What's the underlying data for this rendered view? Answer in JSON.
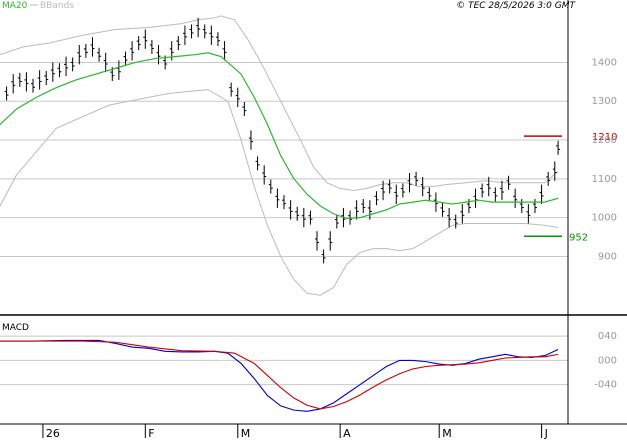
{
  "header": {
    "legend_ma20": "MA20",
    "legend_bbands": "BBands",
    "copyright": "© TEC 28/5/2026 3:0 GMT"
  },
  "colors": {
    "price": "#000000",
    "ma20": "#2db52d",
    "bbands": "#bbbbbb",
    "grid": "#c8c8c8",
    "macd": "#0000cc",
    "signal": "#cc0000",
    "resistance": "#cc0000",
    "support": "#009900",
    "axis_text": "#999999"
  },
  "chart_data": [
    {
      "type": "line",
      "title": "",
      "ylim": [
        780,
        1530
      ],
      "y_ticks": [
        900,
        1000,
        1100,
        1200,
        1300,
        1400
      ],
      "x_month_labels": [
        {
          "label": "26",
          "day": 8
        },
        {
          "label": "F",
          "day": 39
        },
        {
          "label": "M",
          "day": 67
        },
        {
          "label": "A",
          "day": 98
        },
        {
          "label": "M",
          "day": 128
        },
        {
          "label": "J",
          "day": 159
        }
      ],
      "x_range_days": [
        -5,
        167
      ],
      "levels": {
        "resistance": {
          "value": 1210,
          "label": "1210"
        },
        "support": {
          "value": 952,
          "label": "952"
        }
      },
      "series": [
        {
          "name": "Price",
          "points": [
            [
              -3,
              1320
            ],
            [
              -1,
              1345
            ],
            [
              1,
              1355
            ],
            [
              3,
              1350
            ],
            [
              5,
              1340
            ],
            [
              7,
              1355
            ],
            [
              9,
              1360
            ],
            [
              11,
              1375
            ],
            [
              13,
              1380
            ],
            [
              15,
              1390
            ],
            [
              17,
              1395
            ],
            [
              19,
              1420
            ],
            [
              21,
              1430
            ],
            [
              23,
              1440
            ],
            [
              25,
              1420
            ],
            [
              27,
              1400
            ],
            [
              29,
              1370
            ],
            [
              31,
              1380
            ],
            [
              33,
              1410
            ],
            [
              35,
              1430
            ],
            [
              37,
              1450
            ],
            [
              39,
              1460
            ],
            [
              41,
              1440
            ],
            [
              43,
              1420
            ],
            [
              45,
              1400
            ],
            [
              47,
              1430
            ],
            [
              49,
              1450
            ],
            [
              51,
              1470
            ],
            [
              53,
              1480
            ],
            [
              55,
              1490
            ],
            [
              57,
              1480
            ],
            [
              59,
              1470
            ],
            [
              61,
              1460
            ],
            [
              63,
              1430
            ],
            [
              65,
              1330
            ],
            [
              67,
              1310
            ],
            [
              69,
              1280
            ],
            [
              71,
              1200
            ],
            [
              73,
              1140
            ],
            [
              75,
              1110
            ],
            [
              77,
              1080
            ],
            [
              79,
              1050
            ],
            [
              81,
              1040
            ],
            [
              83,
              1020
            ],
            [
              85,
              1010
            ],
            [
              87,
              1000
            ],
            [
              89,
              1000
            ],
            [
              91,
              940
            ],
            [
              93,
              900
            ],
            [
              95,
              940
            ],
            [
              97,
              990
            ],
            [
              99,
              1000
            ],
            [
              101,
              1000
            ],
            [
              103,
              1020
            ],
            [
              105,
              1030
            ],
            [
              107,
              1020
            ],
            [
              109,
              1050
            ],
            [
              111,
              1070
            ],
            [
              113,
              1080
            ],
            [
              115,
              1060
            ],
            [
              117,
              1070
            ],
            [
              119,
              1090
            ],
            [
              121,
              1100
            ],
            [
              123,
              1080
            ],
            [
              125,
              1060
            ],
            [
              127,
              1040
            ],
            [
              129,
              1020
            ],
            [
              131,
              1000
            ],
            [
              133,
              990
            ],
            [
              135,
              1010
            ],
            [
              137,
              1030
            ],
            [
              139,
              1050
            ],
            [
              141,
              1070
            ],
            [
              143,
              1080
            ],
            [
              145,
              1060
            ],
            [
              147,
              1070
            ],
            [
              149,
              1090
            ],
            [
              151,
              1050
            ],
            [
              153,
              1030
            ],
            [
              155,
              1010
            ],
            [
              157,
              1030
            ],
            [
              159,
              1060
            ],
            [
              161,
              1100
            ],
            [
              163,
              1120
            ],
            [
              164,
              1180
            ]
          ]
        },
        {
          "name": "MA20",
          "points": [
            [
              -5,
              1240
            ],
            [
              0,
              1280
            ],
            [
              6,
              1310
            ],
            [
              12,
              1335
            ],
            [
              18,
              1355
            ],
            [
              24,
              1370
            ],
            [
              30,
              1385
            ],
            [
              36,
              1400
            ],
            [
              42,
              1410
            ],
            [
              48,
              1415
            ],
            [
              54,
              1420
            ],
            [
              58,
              1425
            ],
            [
              62,
              1415
            ],
            [
              64,
              1400
            ],
            [
              68,
              1370
            ],
            [
              72,
              1310
            ],
            [
              76,
              1240
            ],
            [
              80,
              1160
            ],
            [
              84,
              1100
            ],
            [
              88,
              1060
            ],
            [
              92,
              1030
            ],
            [
              96,
              1010
            ],
            [
              100,
              998
            ],
            [
              104,
              1000
            ],
            [
              108,
              1010
            ],
            [
              112,
              1020
            ],
            [
              116,
              1035
            ],
            [
              120,
              1040
            ],
            [
              124,
              1045
            ],
            [
              128,
              1040
            ],
            [
              132,
              1035
            ],
            [
              136,
              1040
            ],
            [
              140,
              1045
            ],
            [
              144,
              1040
            ],
            [
              148,
              1040
            ],
            [
              152,
              1040
            ],
            [
              156,
              1040
            ],
            [
              160,
              1040
            ],
            [
              164,
              1050
            ]
          ]
        },
        {
          "name": "BBands upper",
          "points": [
            [
              -5,
              1420
            ],
            [
              2,
              1440
            ],
            [
              10,
              1450
            ],
            [
              20,
              1470
            ],
            [
              30,
              1485
            ],
            [
              40,
              1490
            ],
            [
              50,
              1500
            ],
            [
              55,
              1510
            ],
            [
              60,
              1515
            ],
            [
              62,
              1520
            ],
            [
              66,
              1510
            ],
            [
              70,
              1460
            ],
            [
              74,
              1400
            ],
            [
              80,
              1300
            ],
            [
              86,
              1200
            ],
            [
              90,
              1130
            ],
            [
              94,
              1090
            ],
            [
              98,
              1075
            ],
            [
              102,
              1070
            ],
            [
              106,
              1075
            ],
            [
              110,
              1085
            ],
            [
              114,
              1090
            ],
            [
              118,
              1090
            ],
            [
              122,
              1080
            ],
            [
              126,
              1080
            ],
            [
              130,
              1085
            ],
            [
              136,
              1090
            ],
            [
              142,
              1095
            ],
            [
              148,
              1090
            ],
            [
              154,
              1090
            ],
            [
              160,
              1090
            ],
            [
              164,
              1120
            ]
          ]
        },
        {
          "name": "BBands lower",
          "points": [
            [
              -5,
              1030
            ],
            [
              0,
              1110
            ],
            [
              6,
              1170
            ],
            [
              12,
              1230
            ],
            [
              20,
              1260
            ],
            [
              28,
              1290
            ],
            [
              34,
              1300
            ],
            [
              40,
              1310
            ],
            [
              46,
              1320
            ],
            [
              52,
              1325
            ],
            [
              58,
              1330
            ],
            [
              64,
              1300
            ],
            [
              68,
              1200
            ],
            [
              72,
              1080
            ],
            [
              76,
              980
            ],
            [
              80,
              900
            ],
            [
              84,
              840
            ],
            [
              88,
              805
            ],
            [
              92,
              800
            ],
            [
              96,
              820
            ],
            [
              100,
              880
            ],
            [
              104,
              910
            ],
            [
              108,
              920
            ],
            [
              112,
              920
            ],
            [
              116,
              915
            ],
            [
              120,
              920
            ],
            [
              124,
              940
            ],
            [
              128,
              960
            ],
            [
              132,
              980
            ],
            [
              136,
              985
            ],
            [
              142,
              985
            ],
            [
              148,
              985
            ],
            [
              154,
              985
            ],
            [
              160,
              980
            ],
            [
              164,
              975
            ]
          ]
        }
      ]
    },
    {
      "type": "line",
      "title": "MACD",
      "ylim": [
        -95,
        70
      ],
      "y_ticks": [
        40,
        0,
        -40
      ],
      "y_tick_labels": [
        "040",
        "000",
        "-040"
      ],
      "series": [
        {
          "name": "MACD",
          "points": [
            [
              -5,
              32
            ],
            [
              5,
              32
            ],
            [
              15,
              33
            ],
            [
              25,
              33
            ],
            [
              30,
              28
            ],
            [
              35,
              22
            ],
            [
              40,
              20
            ],
            [
              45,
              15
            ],
            [
              50,
              14
            ],
            [
              55,
              14
            ],
            [
              60,
              15
            ],
            [
              64,
              12
            ],
            [
              68,
              -5
            ],
            [
              72,
              -30
            ],
            [
              76,
              -58
            ],
            [
              80,
              -75
            ],
            [
              84,
              -82
            ],
            [
              88,
              -84
            ],
            [
              92,
              -80
            ],
            [
              96,
              -70
            ],
            [
              100,
              -55
            ],
            [
              104,
              -40
            ],
            [
              108,
              -25
            ],
            [
              112,
              -10
            ],
            [
              116,
              0
            ],
            [
              120,
              0
            ],
            [
              124,
              -2
            ],
            [
              128,
              -6
            ],
            [
              132,
              -8
            ],
            [
              136,
              -5
            ],
            [
              140,
              2
            ],
            [
              144,
              6
            ],
            [
              148,
              10
            ],
            [
              152,
              6
            ],
            [
              156,
              5
            ],
            [
              160,
              8
            ],
            [
              164,
              18
            ]
          ]
        },
        {
          "name": "Signal",
          "points": [
            [
              -5,
              32
            ],
            [
              10,
              32
            ],
            [
              20,
              32
            ],
            [
              30,
              30
            ],
            [
              40,
              22
            ],
            [
              50,
              16
            ],
            [
              60,
              15
            ],
            [
              66,
              12
            ],
            [
              72,
              -5
            ],
            [
              76,
              -25
            ],
            [
              80,
              -45
            ],
            [
              84,
              -62
            ],
            [
              88,
              -74
            ],
            [
              92,
              -80
            ],
            [
              96,
              -76
            ],
            [
              100,
              -68
            ],
            [
              104,
              -57
            ],
            [
              108,
              -44
            ],
            [
              112,
              -32
            ],
            [
              116,
              -22
            ],
            [
              120,
              -14
            ],
            [
              124,
              -10
            ],
            [
              128,
              -8
            ],
            [
              132,
              -7
            ],
            [
              136,
              -6
            ],
            [
              140,
              -4
            ],
            [
              144,
              0
            ],
            [
              148,
              4
            ],
            [
              152,
              5
            ],
            [
              156,
              6
            ],
            [
              160,
              6
            ],
            [
              164,
              10
            ]
          ]
        }
      ]
    }
  ]
}
